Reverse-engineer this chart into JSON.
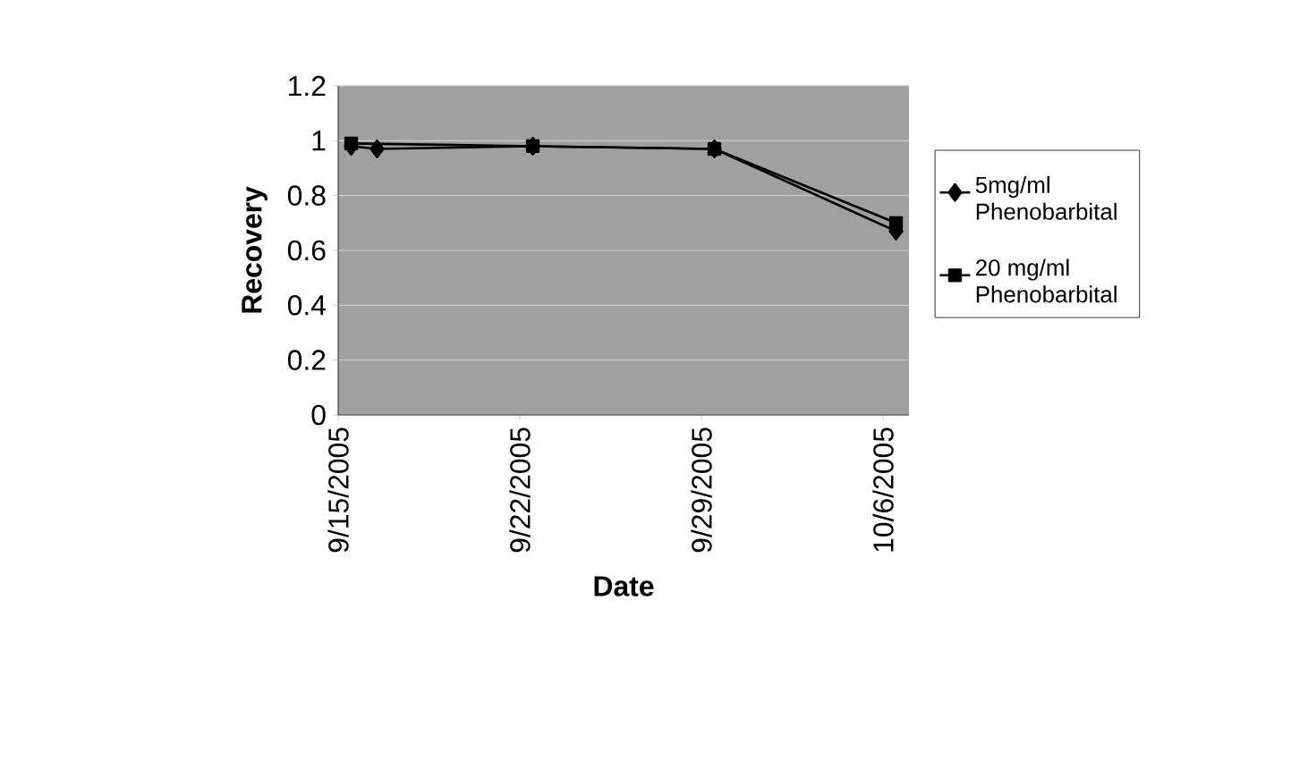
{
  "chart_data": {
    "type": "line",
    "xlabel": "Date",
    "ylabel": "Recovery",
    "xlim": [
      "2005-09-15",
      "2005-10-07"
    ],
    "xticks": [
      {
        "value": "2005-09-15",
        "label": "9/15/2005"
      },
      {
        "value": "2005-09-22",
        "label": "9/22/2005"
      },
      {
        "value": "2005-09-29",
        "label": "9/29/2005"
      },
      {
        "value": "2005-10-06",
        "label": "10/6/2005"
      }
    ],
    "ylim": [
      0,
      1.2
    ],
    "yticks": [
      0,
      0.2,
      0.4,
      0.6,
      0.8,
      1,
      1.2
    ],
    "grid": "y",
    "legend": "right",
    "series": [
      {
        "name": "5mg/ml Phenobarbital",
        "color": "#000000",
        "marker": "diamond",
        "x": [
          "2005-09-15T12:00",
          "2005-09-16T12:00",
          "2005-09-22T12:00",
          "2005-09-29T12:00",
          "2005-10-06T12:00"
        ],
        "values": [
          0.98,
          0.97,
          0.98,
          0.97,
          0.67
        ]
      },
      {
        "name": "20 mg/ml Phenobarbital",
        "color": "#000000",
        "marker": "square",
        "x": [
          "2005-09-15T12:00",
          "2005-09-22T12:00",
          "2005-09-29T12:00",
          "2005-10-06T12:00"
        ],
        "values": [
          0.99,
          0.98,
          0.97,
          0.7
        ]
      }
    ]
  }
}
